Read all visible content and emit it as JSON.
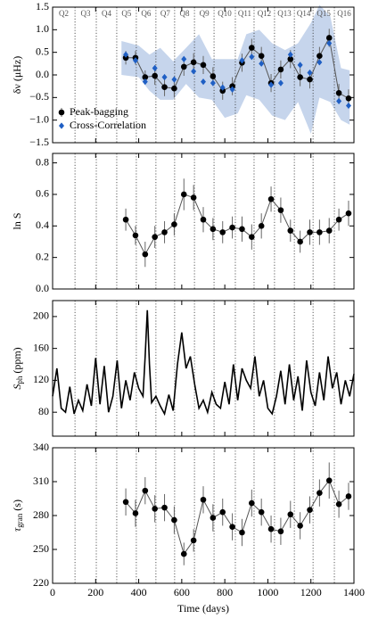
{
  "chart_data": [
    {
      "type": "line",
      "ylabel": "δν (μHz)",
      "ylim": [
        -1.5,
        1.5
      ],
      "yticks": [
        {
          "value": -1.5,
          "label": "−1.5"
        },
        {
          "value": -1,
          "label": "−1.0"
        },
        {
          "value": -0.5,
          "label": "−0.5"
        },
        {
          "value": 0,
          "label": "0.0"
        },
        0.5,
        {
          "value": 1,
          "label": "1.0"
        },
        1.5
      ],
      "quarter_labels": [
        "Q2",
        "Q3",
        "Q4",
        "Q5",
        "Q6",
        "Q7",
        "Q8",
        "Q9",
        "Q10",
        "Q11",
        "Q12",
        "Q13",
        "Q14",
        "Q15",
        "Q16"
      ],
      "quarter_lines": [
        104,
        203,
        298,
        389,
        480,
        567,
        659,
        750,
        849,
        936,
        1031,
        1123,
        1210,
        1309
      ],
      "band": {
        "color": "#c6d5ec",
        "x": [
          320,
          400,
          450,
          500,
          560,
          620,
          680,
          740,
          800,
          860,
          900,
          960,
          1020,
          1080,
          1140,
          1200,
          1240,
          1290,
          1340,
          1380
        ],
        "lower": [
          0,
          -0.05,
          -0.35,
          -0.55,
          -0.55,
          -0.2,
          -0.5,
          -0.55,
          -0.95,
          -0.85,
          -0.45,
          -0.55,
          -0.9,
          -1.0,
          -0.6,
          -1.3,
          -0.5,
          -0.6,
          -1.0,
          -1.1
        ],
        "upper": [
          0.75,
          0.65,
          0.45,
          0.6,
          0.3,
          0.6,
          0.9,
          0.35,
          0.35,
          0.35,
          0.9,
          1.0,
          0.7,
          0.55,
          0.7,
          1.15,
          1.55,
          1.3,
          0.15,
          0.1
        ]
      },
      "x": [
        340,
        385,
        430,
        475,
        520,
        565,
        610,
        655,
        700,
        745,
        790,
        835,
        880,
        925,
        970,
        1015,
        1060,
        1105,
        1150,
        1195,
        1240,
        1285,
        1330,
        1375
      ],
      "legend": "lower left",
      "series": [
        {
          "name": "Peak-bagging",
          "color": "#000000",
          "marker": "o",
          "linestyle": "-",
          "values": [
            0.38,
            0.38,
            -0.05,
            -0.02,
            -0.27,
            -0.3,
            0.18,
            0.28,
            0.22,
            -0.03,
            -0.35,
            -0.25,
            0.27,
            0.6,
            0.42,
            -0.18,
            0.12,
            0.35,
            -0.05,
            -0.1,
            0.42,
            0.82,
            -0.4,
            -0.52
          ],
          "errors": [
            0.15,
            0.15,
            0.15,
            0.2,
            0.2,
            0.2,
            0.2,
            0.2,
            0.2,
            0.2,
            0.2,
            0.2,
            0.2,
            0.2,
            0.2,
            0.2,
            0.2,
            0.2,
            0.2,
            0.2,
            0.2,
            0.2,
            0.2,
            0.2
          ]
        },
        {
          "name": "Cross-Correlation",
          "color": "#1f5fc4",
          "marker": "D",
          "linestyle": "none",
          "values": [
            0.45,
            0.32,
            -0.15,
            0.15,
            -0.05,
            -0.1,
            0.35,
            0.08,
            -0.15,
            -0.18,
            -0.28,
            -0.32,
            0.32,
            0.4,
            0.25,
            -0.22,
            -0.18,
            0.45,
            0.22,
            0.05,
            0.28,
            0.7,
            -0.58,
            -0.68
          ]
        }
      ]
    },
    {
      "type": "line",
      "ylabel": "ln S",
      "ylim": [
        0,
        0.86
      ],
      "yticks": [
        {
          "value": 0,
          "label": "0.0"
        },
        0.2,
        0.4,
        0.6,
        0.8
      ],
      "x": [
        340,
        385,
        430,
        475,
        520,
        565,
        610,
        655,
        700,
        745,
        790,
        835,
        880,
        925,
        970,
        1015,
        1060,
        1105,
        1150,
        1195,
        1240,
        1285,
        1330,
        1375
      ],
      "series": [
        {
          "color": "#000000",
          "marker": "o",
          "linestyle": "-",
          "values": [
            0.44,
            0.34,
            0.22,
            0.33,
            0.36,
            0.41,
            0.6,
            0.58,
            0.44,
            0.38,
            0.36,
            0.39,
            0.38,
            0.33,
            0.4,
            0.57,
            0.5,
            0.37,
            0.3,
            0.36,
            0.36,
            0.37,
            0.44,
            0.48
          ],
          "errors": [
            0.07,
            0.06,
            0.08,
            0.07,
            0.07,
            0.07,
            0.1,
            0.08,
            0.08,
            0.07,
            0.07,
            0.07,
            0.08,
            0.08,
            0.08,
            0.08,
            0.08,
            0.07,
            0.07,
            0.08,
            0.08,
            0.08,
            0.07,
            0.08
          ]
        }
      ]
    },
    {
      "type": "line",
      "ylabel": "S",
      "ylabel_sub": "ph",
      "ylabel_unit": "(ppm)",
      "ylim": [
        50,
        220
      ],
      "yticks": [
        80,
        120,
        160,
        200
      ],
      "x": [
        0,
        20,
        40,
        60,
        80,
        100,
        120,
        140,
        160,
        180,
        200,
        220,
        240,
        260,
        280,
        300,
        320,
        340,
        360,
        380,
        400,
        420,
        430,
        440,
        450,
        460,
        480,
        500,
        520,
        540,
        560,
        580,
        600,
        620,
        640,
        660,
        680,
        700,
        720,
        740,
        760,
        780,
        800,
        820,
        840,
        860,
        880,
        900,
        920,
        940,
        960,
        980,
        1000,
        1020,
        1040,
        1060,
        1080,
        1100,
        1120,
        1140,
        1160,
        1180,
        1200,
        1220,
        1240,
        1260,
        1280,
        1300,
        1320,
        1340,
        1360,
        1380,
        1400
      ],
      "series": [
        {
          "color": "#000000",
          "marker": "none",
          "linestyle": "-",
          "values": [
            100,
            135,
            85,
            80,
            112,
            78,
            95,
            82,
            115,
            88,
            148,
            90,
            138,
            80,
            100,
            145,
            85,
            120,
            95,
            130,
            110,
            100,
            150,
            208,
            140,
            92,
            100,
            88,
            78,
            102,
            82,
            140,
            180,
            135,
            150,
            115,
            85,
            95,
            80,
            105,
            90,
            85,
            118,
            90,
            140,
            95,
            135,
            120,
            110,
            150,
            100,
            120,
            85,
            78,
            100,
            132,
            90,
            140,
            95,
            125,
            82,
            145,
            105,
            88,
            130,
            95,
            150,
            110,
            130,
            90,
            120,
            100,
            128
          ]
        }
      ]
    },
    {
      "type": "line",
      "ylabel": "τ",
      "ylabel_sub": "gran",
      "ylabel_unit": "(s)",
      "ylim": [
        220,
        340
      ],
      "yticks": [
        220,
        250,
        280,
        310,
        340
      ],
      "xlim": [
        0,
        1400
      ],
      "xticks": [
        0,
        200,
        400,
        600,
        800,
        1000,
        1200,
        1400
      ],
      "xlabel": "Time (days)",
      "x": [
        340,
        385,
        430,
        475,
        520,
        565,
        610,
        655,
        700,
        745,
        790,
        835,
        880,
        925,
        970,
        1015,
        1060,
        1105,
        1150,
        1195,
        1240,
        1285,
        1330,
        1375
      ],
      "series": [
        {
          "color": "#000000",
          "marker": "o",
          "linestyle": "-",
          "values": [
            292,
            282,
            302,
            286,
            287,
            276,
            246,
            258,
            294,
            278,
            283,
            270,
            265,
            291,
            283,
            268,
            266,
            281,
            271,
            285,
            300,
            311,
            290,
            297
          ],
          "errors": [
            12,
            12,
            12,
            12,
            12,
            12,
            10,
            10,
            12,
            12,
            12,
            12,
            12,
            12,
            12,
            12,
            12,
            12,
            12,
            12,
            12,
            16,
            12,
            12
          ]
        }
      ]
    }
  ]
}
